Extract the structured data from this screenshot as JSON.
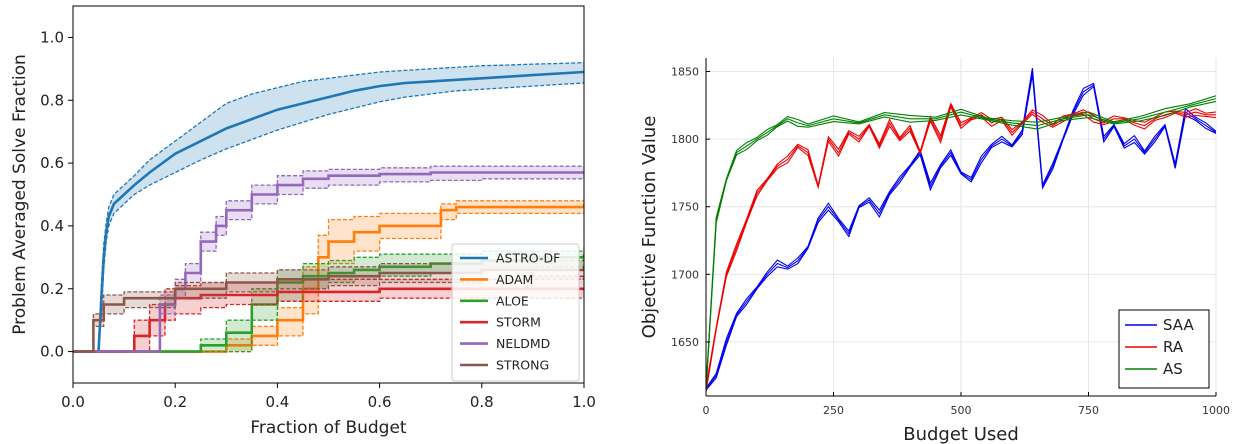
{
  "chart_data": [
    {
      "type": "line",
      "xlabel": "Fraction of Budget",
      "ylabel": "Problem Averaged Solve Fraction",
      "xlim": [
        0.0,
        1.0
      ],
      "ylim": [
        -0.1,
        1.1
      ],
      "xticks": [
        0.0,
        0.2,
        0.4,
        0.6,
        0.8,
        1.0
      ],
      "yticks": [
        0.0,
        0.2,
        0.4,
        0.6,
        0.8,
        1.0
      ],
      "xtick_labels": [
        "0.0",
        "0.2",
        "0.4",
        "0.6",
        "0.8",
        "1.0"
      ],
      "ytick_labels": [
        "0.0",
        "0.2",
        "0.4",
        "0.6",
        "0.8",
        "1.0"
      ],
      "legend_position": "lower-right",
      "series": [
        {
          "name": "ASTRO-DF",
          "color": "#1f77b4",
          "step": false,
          "x": [
            0.0,
            0.05,
            0.055,
            0.06,
            0.065,
            0.07,
            0.08,
            0.1,
            0.12,
            0.15,
            0.2,
            0.25,
            0.3,
            0.35,
            0.4,
            0.45,
            0.5,
            0.55,
            0.6,
            0.65,
            0.7,
            0.75,
            0.8,
            0.85,
            0.9,
            0.95,
            1.0
          ],
          "y": [
            0.0,
            0.0,
            0.15,
            0.3,
            0.38,
            0.43,
            0.47,
            0.5,
            0.53,
            0.57,
            0.63,
            0.67,
            0.71,
            0.74,
            0.77,
            0.79,
            0.81,
            0.83,
            0.845,
            0.855,
            0.86,
            0.865,
            0.87,
            0.875,
            0.88,
            0.885,
            0.89
          ],
          "lo": [
            0.0,
            0.0,
            0.1,
            0.26,
            0.35,
            0.4,
            0.44,
            0.47,
            0.5,
            0.53,
            0.57,
            0.61,
            0.645,
            0.675,
            0.705,
            0.73,
            0.755,
            0.775,
            0.795,
            0.81,
            0.82,
            0.83,
            0.835,
            0.84,
            0.845,
            0.85,
            0.855
          ],
          "hi": [
            0.0,
            0.0,
            0.2,
            0.34,
            0.41,
            0.46,
            0.5,
            0.53,
            0.56,
            0.61,
            0.67,
            0.73,
            0.79,
            0.82,
            0.84,
            0.86,
            0.87,
            0.88,
            0.89,
            0.895,
            0.9,
            0.905,
            0.91,
            0.912,
            0.915,
            0.917,
            0.92
          ]
        },
        {
          "name": "ADAM",
          "color": "#ff7f0e",
          "step": true,
          "x": [
            0.0,
            0.22,
            0.3,
            0.35,
            0.4,
            0.45,
            0.48,
            0.5,
            0.55,
            0.6,
            0.72,
            0.75,
            1.0
          ],
          "y": [
            0.0,
            0.0,
            0.02,
            0.05,
            0.1,
            0.2,
            0.3,
            0.35,
            0.38,
            0.4,
            0.45,
            0.46,
            0.47
          ],
          "lo": [
            0.0,
            0.0,
            0.0,
            0.02,
            0.05,
            0.12,
            0.23,
            0.28,
            0.32,
            0.36,
            0.42,
            0.44,
            0.45
          ],
          "hi": [
            0.0,
            0.0,
            0.04,
            0.08,
            0.14,
            0.27,
            0.37,
            0.42,
            0.43,
            0.44,
            0.47,
            0.48,
            0.49
          ]
        },
        {
          "name": "ALOE",
          "color": "#2ca02c",
          "step": true,
          "x": [
            0.0,
            0.19,
            0.25,
            0.3,
            0.35,
            0.4,
            0.45,
            0.5,
            0.55,
            0.6,
            0.7,
            0.8,
            0.9,
            1.0
          ],
          "y": [
            0.0,
            0.0,
            0.02,
            0.06,
            0.15,
            0.22,
            0.24,
            0.25,
            0.26,
            0.27,
            0.28,
            0.29,
            0.3,
            0.31
          ],
          "lo": [
            0.0,
            0.0,
            0.0,
            0.0,
            0.1,
            0.16,
            0.2,
            0.22,
            0.23,
            0.24,
            0.25,
            0.26,
            0.27,
            0.28
          ],
          "hi": [
            0.0,
            0.0,
            0.04,
            0.1,
            0.2,
            0.26,
            0.28,
            0.29,
            0.3,
            0.31,
            0.31,
            0.32,
            0.32,
            0.33
          ]
        },
        {
          "name": "STORM",
          "color": "#d62728",
          "step": true,
          "x": [
            0.0,
            0.1,
            0.12,
            0.15,
            0.18,
            0.2,
            0.25,
            0.3,
            0.4,
            0.5,
            0.6,
            0.7,
            0.8,
            0.9,
            1.0
          ],
          "y": [
            0.0,
            0.0,
            0.05,
            0.1,
            0.15,
            0.17,
            0.18,
            0.18,
            0.19,
            0.19,
            0.2,
            0.2,
            0.2,
            0.2,
            0.2
          ],
          "lo": [
            0.0,
            0.0,
            0.0,
            0.05,
            0.1,
            0.12,
            0.14,
            0.15,
            0.16,
            0.16,
            0.17,
            0.17,
            0.17,
            0.17,
            0.17
          ],
          "hi": [
            0.0,
            0.0,
            0.1,
            0.15,
            0.2,
            0.21,
            0.22,
            0.22,
            0.23,
            0.23,
            0.23,
            0.23,
            0.23,
            0.24,
            0.24
          ]
        },
        {
          "name": "NELDMD",
          "color": "#9467bd",
          "step": true,
          "x": [
            0.0,
            0.15,
            0.17,
            0.2,
            0.22,
            0.25,
            0.28,
            0.3,
            0.35,
            0.4,
            0.45,
            0.5,
            0.6,
            0.7,
            0.8,
            1.0
          ],
          "y": [
            0.0,
            0.0,
            0.15,
            0.2,
            0.25,
            0.35,
            0.4,
            0.45,
            0.5,
            0.53,
            0.55,
            0.56,
            0.565,
            0.57,
            0.57,
            0.57
          ],
          "lo": [
            0.0,
            0.0,
            0.12,
            0.17,
            0.22,
            0.32,
            0.37,
            0.42,
            0.47,
            0.5,
            0.52,
            0.53,
            0.54,
            0.545,
            0.55,
            0.55
          ],
          "hi": [
            0.0,
            0.0,
            0.18,
            0.23,
            0.28,
            0.38,
            0.43,
            0.48,
            0.53,
            0.56,
            0.575,
            0.58,
            0.585,
            0.59,
            0.59,
            0.59
          ]
        },
        {
          "name": "STRONG",
          "color": "#8c564b",
          "step": true,
          "x": [
            0.0,
            0.03,
            0.04,
            0.06,
            0.1,
            0.2,
            0.3,
            0.4,
            0.5,
            0.6,
            0.8,
            1.0
          ],
          "y": [
            0.0,
            0.0,
            0.1,
            0.15,
            0.17,
            0.2,
            0.22,
            0.23,
            0.24,
            0.25,
            0.26,
            0.27
          ],
          "lo": [
            0.0,
            0.0,
            0.08,
            0.12,
            0.14,
            0.17,
            0.19,
            0.2,
            0.21,
            0.22,
            0.23,
            0.24
          ],
          "hi": [
            0.0,
            0.0,
            0.12,
            0.18,
            0.19,
            0.22,
            0.25,
            0.26,
            0.27,
            0.28,
            0.29,
            0.3
          ]
        }
      ]
    },
    {
      "type": "line",
      "xlabel": "Budget Used",
      "ylabel": "Objective Function Value",
      "xlim": [
        0,
        1000
      ],
      "ylim": [
        1610,
        1860
      ],
      "xticks": [
        0,
        250,
        500,
        750,
        1000
      ],
      "yticks": [
        1650,
        1700,
        1750,
        1800,
        1850
      ],
      "xtick_labels": [
        "0",
        "250",
        "500",
        "750",
        "1000"
      ],
      "ytick_labels": [
        "1650",
        "1700",
        "1750",
        "1800",
        "1850"
      ],
      "legend_position": "bottom-right",
      "series": [
        {
          "name": "SAA",
          "color": "#0000ee",
          "x": [
            0,
            20,
            40,
            60,
            80,
            100,
            120,
            140,
            160,
            180,
            200,
            220,
            240,
            260,
            280,
            300,
            320,
            340,
            360,
            380,
            400,
            420,
            440,
            460,
            480,
            500,
            520,
            540,
            560,
            580,
            600,
            620,
            640,
            660,
            680,
            700,
            720,
            740,
            760,
            780,
            800,
            820,
            840,
            860,
            880,
            900,
            920,
            940,
            960,
            980,
            1000
          ],
          "y": [
            1615,
            1625,
            1650,
            1670,
            1680,
            1690,
            1700,
            1708,
            1705,
            1710,
            1720,
            1740,
            1750,
            1740,
            1730,
            1750,
            1755,
            1745,
            1760,
            1770,
            1780,
            1790,
            1765,
            1780,
            1790,
            1775,
            1770,
            1785,
            1795,
            1800,
            1795,
            1805,
            1850,
            1765,
            1780,
            1800,
            1820,
            1835,
            1840,
            1800,
            1810,
            1795,
            1800,
            1790,
            1800,
            1810,
            1780,
            1820,
            1815,
            1810,
            1805
          ]
        },
        {
          "name": "RA",
          "color": "#ee0000",
          "x": [
            0,
            20,
            40,
            60,
            80,
            100,
            120,
            140,
            160,
            180,
            200,
            220,
            240,
            260,
            280,
            300,
            320,
            340,
            360,
            380,
            400,
            420,
            440,
            460,
            480,
            500,
            520,
            540,
            560,
            580,
            600,
            620,
            640,
            660,
            680,
            700,
            720,
            740,
            760,
            780,
            800,
            820,
            840,
            860,
            880,
            900,
            920,
            940,
            960,
            980,
            1000
          ],
          "y": [
            1615,
            1660,
            1700,
            1720,
            1740,
            1760,
            1770,
            1780,
            1785,
            1795,
            1790,
            1765,
            1800,
            1790,
            1805,
            1800,
            1810,
            1795,
            1812,
            1800,
            1808,
            1790,
            1815,
            1800,
            1825,
            1810,
            1815,
            1818,
            1812,
            1815,
            1805,
            1812,
            1820,
            1815,
            1810,
            1815,
            1818,
            1820,
            1815,
            1812,
            1815,
            1815,
            1812,
            1810,
            1815,
            1818,
            1820,
            1818,
            1820,
            1818,
            1818
          ]
        },
        {
          "name": "AS",
          "color": "#008000",
          "x": [
            0,
            20,
            40,
            60,
            80,
            100,
            120,
            140,
            160,
            180,
            200,
            250,
            300,
            350,
            400,
            450,
            500,
            550,
            600,
            650,
            700,
            750,
            800,
            850,
            900,
            950,
            1000
          ],
          "y": [
            1615,
            1740,
            1770,
            1790,
            1795,
            1800,
            1805,
            1810,
            1815,
            1812,
            1810,
            1815,
            1812,
            1818,
            1815,
            1815,
            1820,
            1815,
            1812,
            1810,
            1815,
            1818,
            1812,
            1815,
            1820,
            1825,
            1830
          ]
        }
      ]
    }
  ]
}
